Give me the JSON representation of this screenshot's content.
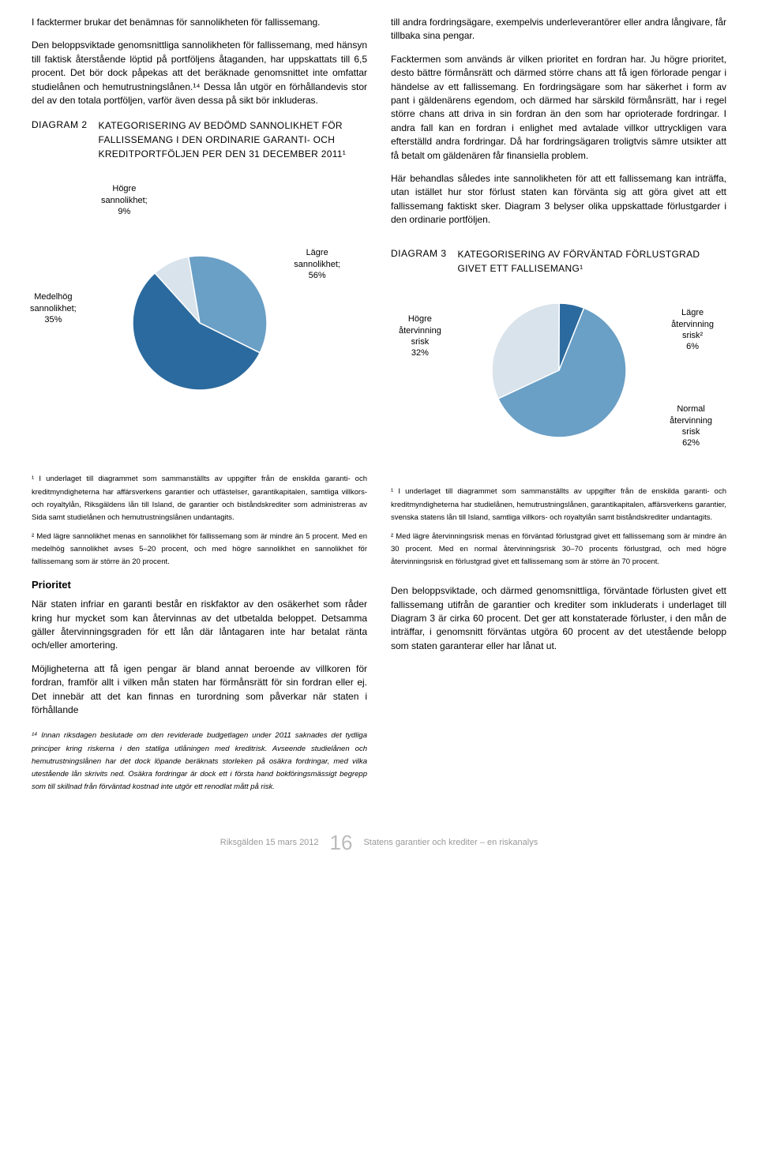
{
  "left": {
    "p1": "I facktermer brukar det benämnas för sannolikheten för fallissemang.",
    "p2": "Den beloppsviktade genomsnittliga sannolikheten för fallissemang, med hänsyn till faktisk återstående löptid på portföljens åtaganden, har uppskattats till 6,5 procent. Det bör dock påpekas att det beräknade genomsnittet inte omfattar studielånen och hemutrustningslånen.¹⁴ Dessa lån utgör en förhållandevis stor del av den totala portföljen, varför även dessa på sikt bör inkluderas.",
    "diag2": {
      "num": "DIAGRAM 2",
      "title": "KATEGORISERING AV BEDÖMD SANNOLIKHET FÖR FALLISSEMANG I DEN ORDINARIE GARANTI- OCH KREDITPORTFÖLJEN PER DEN 31 DECEMBER 2011¹"
    }
  },
  "right": {
    "p1": "till andra fordringsägare, exempelvis underleverantörer eller andra långivare, får tillbaka sina pengar.",
    "p2": "Facktermen som används är vilken prioritet en fordran har. Ju högre prioritet, desto bättre förmånsrätt och därmed större chans att få igen förlorade pengar i händelse av ett fallissemang. En fordringsägare som har säkerhet i form av pant i gäldenärens egendom, och därmed har särskild förmånsrätt, har i regel större chans att driva in sin fordran än den som har oprioterade fordringar. I andra fall kan en fordran i enlighet med avtalade villkor uttryckligen vara efterställd andra fordringar. Då har fordringsägaren troligtvis sämre utsikter att få betalt om gäldenären får finansiella problem.",
    "p3": "Här behandlas således inte sannolikheten för att ett fallissemang kan inträffa, utan istället hur stor förlust staten kan förvänta sig att göra givet att ett fallissemang faktiskt sker. Diagram 3 belyser olika uppskattade förlustgarder i den ordinarie portföljen."
  },
  "chart2": {
    "type": "pie",
    "background_color": "#ffffff",
    "slices": [
      {
        "label": "Högre sannolikhet; 9%",
        "value": 9,
        "color": "#d9e3ec"
      },
      {
        "label": "Medelhög sannolikhet; 35%",
        "value": 35,
        "color": "#6a9fc6"
      },
      {
        "label": "Lägre sannolikhet; 56%",
        "value": 56,
        "color": "#2b6a9e"
      }
    ],
    "label_fontsize": 11,
    "radius": 85
  },
  "chart3": {
    "type": "pie",
    "background_color": "#ffffff",
    "slices": [
      {
        "label": "Högre återvinning srisk 32%",
        "value": 32,
        "color": "#d9e3ec"
      },
      {
        "label": "Lägre återvinning srisk² 6%",
        "value": 6,
        "color": "#2b6a9e"
      },
      {
        "label": "Normal återvinning srisk 62%",
        "value": 62,
        "color": "#6a9fc6"
      }
    ],
    "label_fontsize": 11,
    "radius": 85
  },
  "lower_left": {
    "fn1": "¹ I underlaget till diagrammet som sammanställts av uppgifter från de enskilda garanti- och kreditmyndigheterna har affärsverkens garantier och utfästelser, garantikapitalen, samtliga villkors- och royaltylån, Riksgäldens lån till Island, de garantier och biståndskrediter som administreras av Sida samt studielånen och hemutrustningslånen undantagits.",
    "fn2": "² Med lägre sannolikhet menas en sannolikhet för fallissemang som är mindre än 5 procent. Med en medelhög sannolikhet avses 5–20 procent, och med högre sannolikhet en sannolikhet för fallissemang som är större än 20 procent.",
    "h": "Prioritet",
    "p1": "När staten infriar en garanti består en riskfaktor av den osäkerhet som råder kring hur mycket som kan återvinnas av det utbetalda beloppet. Detsamma gäller återvinningsgraden för ett lån där låntagaren inte har betalat ränta och/eller amortering.",
    "p2": "Möjligheterna att få igen pengar är bland annat beroende av villkoren för fordran, framför allt i vilken mån staten har förmånsrätt för sin fordran eller ej. Det innebär att det kan finnas en turordning som påverkar när staten i förhållande",
    "fn14": "¹⁴ Innan riksdagen beslutade om den reviderade budgetlagen under 2011 saknades det tydliga principer kring riskerna i den statliga utlåningen med kreditrisk. Avseende studielånen och hemutrustningslånen har det dock löpande beräknats storleken på osäkra fordringar, med vilka utestående lån skrivits ned. Osäkra fordringar är dock ett i första hand bokföringsmässigt begrepp som till skillnad från förväntad kostnad inte utgör ett renodlat mått på risk."
  },
  "lower_right": {
    "diag3": {
      "num": "DIAGRAM 3",
      "title": "KATEGORISERING AV FÖRVÄNTAD FÖRLUSTGRAD GIVET ETT FALLISEMANG¹"
    },
    "fn1": "¹ I underlaget till diagrammet som sammanställts av uppgifter från de enskilda garanti- och kreditmyndigheterna har studielånen, hemutrustningslånen, garantikapitalen, affärsverkens garantier, svenska statens lån till Island, samtliga villkors- och royaltylån samt biståndskrediter undantagits.",
    "fn2": "² Med lägre återvinningsrisk menas en förväntad förlustgrad givet ett fallissemang som är mindre än 30 procent. Med en normal återvinningsrisk 30–70 procents förlustgrad, och med högre återvinningsrisk en förlustgrad givet ett fallissemang som är större än 70 procent.",
    "p1": "Den beloppsviktade, och därmed genomsnittliga, förväntade förlusten givet ett fallissemang utifrån de garantier och krediter som inkluderats i underlaget till Diagram 3 är cirka 60 procent. Det ger att konstaterade förluster, i den mån de inträffar, i genomsnitt förväntas utgöra 60 procent av det utestående belopp som staten garanterar eller har lånat ut."
  },
  "footer": {
    "left": "Riksgälden 15 mars 2012",
    "num": "16",
    "right": "Statens garantier och krediter – en riskanalys"
  }
}
